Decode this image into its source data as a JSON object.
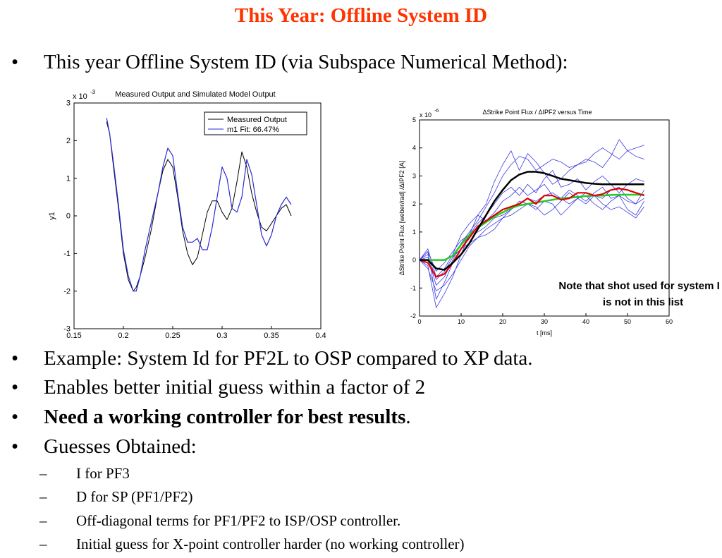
{
  "slide": {
    "title": "This Year: Offline System ID",
    "bullet_mark": "•",
    "sub_mark": "–",
    "intro": "This year Offline System ID (via Subspace Numerical Method):",
    "bullets": [
      {
        "text": "Example: System Id for PF2L to OSP compared to XP data.",
        "tail": ""
      },
      {
        "text": "Enables better initial guess within a factor of 2",
        "tail": ""
      },
      {
        "text": "Need a working controller for best results",
        "tail": "."
      },
      {
        "text": "Guesses Obtained:",
        "tail": ""
      }
    ],
    "sub_bullets": [
      "I for PF3",
      "D for SP (PF1/PF2)",
      "Off-diagonal terms for PF1/PF2 to ISP/OSP controller.",
      "Initial guess for X-point controller harder (no working controller)"
    ]
  },
  "chart_data": [
    {
      "type": "line",
      "title": "Measured Output and Simulated Model Output",
      "xlabel": "",
      "ylabel": "y1",
      "y_multiplier": "x 10",
      "y_exponent": "-3",
      "xlim": [
        0.15,
        0.4
      ],
      "ylim": [
        -3,
        3
      ],
      "xticks": [
        "0.15",
        "0.2",
        "0.25",
        "0.3",
        "0.35",
        "0.4"
      ],
      "yticks": [
        "3",
        "2",
        "1",
        "0",
        "-1",
        "-2",
        "-3"
      ],
      "grid": false,
      "legend_position": "top-right",
      "colors": {
        "measured": "#000000",
        "model": "#2a2ad6"
      },
      "series": [
        {
          "name": "Measured Output",
          "x": [
            0.183,
            0.186,
            0.19,
            0.195,
            0.2,
            0.205,
            0.21,
            0.213,
            0.217,
            0.222,
            0.228,
            0.235,
            0.24,
            0.245,
            0.25,
            0.255,
            0.26,
            0.265,
            0.27,
            0.275,
            0.28,
            0.285,
            0.29,
            0.295,
            0.3,
            0.305,
            0.31,
            0.315,
            0.32,
            0.325,
            0.33,
            0.335,
            0.34,
            0.345,
            0.35,
            0.355,
            0.36,
            0.365,
            0.37
          ],
          "values": [
            2.5,
            2.2,
            1.3,
            0.2,
            -1.0,
            -1.7,
            -2.0,
            -1.9,
            -1.6,
            -1.1,
            -0.4,
            0.6,
            1.2,
            1.5,
            1.3,
            0.5,
            -0.4,
            -1.0,
            -1.3,
            -1.1,
            -0.5,
            0.1,
            0.4,
            0.4,
            0.1,
            -0.1,
            0.2,
            0.9,
            1.7,
            1.3,
            0.6,
            0.1,
            -0.3,
            -0.4,
            -0.2,
            0.0,
            0.2,
            0.3,
            0.0
          ]
        },
        {
          "name": "m1 Fit: 66.47%",
          "x": [
            0.183,
            0.186,
            0.19,
            0.195,
            0.2,
            0.205,
            0.21,
            0.213,
            0.217,
            0.222,
            0.228,
            0.235,
            0.24,
            0.245,
            0.25,
            0.255,
            0.26,
            0.265,
            0.27,
            0.275,
            0.28,
            0.285,
            0.29,
            0.295,
            0.3,
            0.305,
            0.31,
            0.315,
            0.32,
            0.325,
            0.33,
            0.335,
            0.34,
            0.345,
            0.35,
            0.355,
            0.36,
            0.365,
            0.37
          ],
          "values": [
            2.6,
            2.2,
            1.4,
            0.3,
            -0.9,
            -1.6,
            -2.0,
            -2.0,
            -1.6,
            -0.9,
            -0.2,
            0.6,
            1.3,
            1.8,
            1.6,
            0.6,
            -0.3,
            -0.7,
            -0.7,
            -0.6,
            -0.9,
            -0.9,
            -0.3,
            0.5,
            1.3,
            1.0,
            0.2,
            0.1,
            0.5,
            1.5,
            1.1,
            0.3,
            -0.5,
            -0.8,
            -0.5,
            0.0,
            0.3,
            0.5,
            0.3
          ]
        }
      ]
    },
    {
      "type": "line",
      "title": "ΔStrike Point Flux / ΔIPF2 versus Time",
      "xlabel": "t [ms]",
      "ylabel": "ΔStrike Point Flux [weber/rad] /ΔIPF2 [A]",
      "y_multiplier": "x 10",
      "y_exponent": "-6",
      "xlim": [
        0,
        60
      ],
      "ylim": [
        -2,
        5
      ],
      "xticks": [
        "0",
        "10",
        "20",
        "30",
        "40",
        "50",
        "60"
      ],
      "yticks": [
        "5",
        "4",
        "3",
        "2",
        "1",
        "0",
        "-1",
        "-2"
      ],
      "grid": false,
      "annotation": {
        "line1": "Note that shot used for system ID",
        "line2": "is not in this list"
      },
      "colors": {
        "shots": "#3a3ae0",
        "black": "#000000",
        "red": "#e00000",
        "green": "#22cc22"
      },
      "x": [
        0,
        2,
        4,
        6,
        8,
        10,
        12,
        14,
        16,
        18,
        20,
        22,
        24,
        26,
        28,
        30,
        32,
        34,
        36,
        38,
        40,
        42,
        44,
        46,
        48,
        50,
        52,
        54
      ],
      "shots": [
        [
          0,
          0.1,
          -0.9,
          -0.6,
          0.0,
          0.6,
          1.0,
          1.4,
          1.9,
          2.4,
          3.0,
          3.4,
          3.7,
          3.6,
          3.2,
          3.4,
          3.6,
          3.5,
          3.3,
          3.4,
          3.5,
          3.8,
          4.0,
          3.8,
          3.6,
          3.9,
          4.0,
          4.1
        ],
        [
          0,
          0.3,
          -1.4,
          -0.8,
          -0.1,
          0.4,
          0.9,
          1.6,
          2.0,
          2.8,
          3.4,
          3.9,
          3.2,
          3.8,
          3.5,
          3.1,
          2.7,
          2.9,
          3.2,
          3.4,
          3.6,
          3.5,
          3.3,
          3.7,
          4.3,
          3.9,
          3.7,
          3.6
        ],
        [
          0,
          -0.2,
          -1.7,
          -1.2,
          -0.6,
          0.2,
          0.9,
          1.3,
          1.6,
          2.0,
          2.4,
          2.6,
          2.3,
          2.7,
          2.4,
          2.9,
          3.2,
          2.6,
          2.7,
          2.9,
          2.5,
          2.8,
          3.0,
          2.7,
          2.4,
          2.7,
          2.9,
          2.8
        ],
        [
          0,
          0.4,
          -0.6,
          -0.3,
          0.2,
          0.9,
          1.3,
          1.6,
          1.4,
          1.7,
          2.1,
          2.3,
          2.6,
          2.3,
          2.5,
          2.7,
          2.3,
          2.2,
          2.5,
          2.3,
          2.1,
          2.4,
          2.6,
          2.2,
          2.3,
          2.1,
          2.0,
          2.2
        ],
        [
          0,
          0.3,
          -0.4,
          -0.1,
          0.3,
          0.7,
          0.9,
          1.0,
          1.2,
          1.5,
          1.6,
          1.8,
          2.0,
          2.2,
          2.1,
          2.3,
          2.4,
          2.2,
          2.0,
          2.2,
          2.4,
          2.3,
          2.2,
          2.5,
          2.6,
          2.2,
          2.0,
          2.5
        ],
        [
          0,
          0.2,
          -0.7,
          -0.4,
          0.1,
          0.4,
          0.6,
          0.8,
          0.9,
          1.1,
          1.5,
          1.8,
          2.1,
          2.0,
          1.8,
          2.1,
          2.0,
          1.6,
          1.9,
          2.2,
          2.3,
          2.0,
          1.8,
          2.1,
          2.3,
          1.8,
          1.6,
          2.1
        ],
        [
          0,
          -0.3,
          -1.1,
          -0.9,
          -0.5,
          0.0,
          0.5,
          0.8,
          1.1,
          1.3,
          1.5,
          1.6,
          1.8,
          2.0,
          1.9,
          1.6,
          1.8,
          2.1,
          2.4,
          2.2,
          2.0,
          2.3,
          2.0,
          1.8,
          1.9,
          1.7,
          1.5,
          1.9
        ]
      ],
      "black": [
        0,
        0.0,
        -0.3,
        -0.35,
        -0.1,
        0.2,
        0.6,
        1.1,
        1.6,
        2.1,
        2.5,
        2.85,
        3.05,
        3.15,
        3.15,
        3.1,
        3.0,
        2.9,
        2.85,
        2.8,
        2.75,
        2.72,
        2.7,
        2.7,
        2.7,
        2.7,
        2.7,
        2.7
      ],
      "red": [
        0,
        -0.1,
        -0.6,
        -0.5,
        -0.1,
        0.4,
        0.8,
        1.2,
        1.4,
        1.6,
        1.8,
        1.9,
        2.0,
        2.2,
        2.0,
        2.3,
        2.3,
        2.15,
        2.2,
        2.4,
        2.4,
        2.3,
        2.35,
        2.5,
        2.55,
        2.5,
        2.4,
        2.3
      ],
      "green": [
        0,
        0.0,
        0.0,
        0.0,
        0.15,
        0.55,
        0.9,
        1.15,
        1.35,
        1.55,
        1.7,
        1.85,
        1.95,
        2.0,
        2.05,
        2.1,
        2.15,
        2.2,
        2.22,
        2.25,
        2.28,
        2.3,
        2.3,
        2.32,
        2.33,
        2.33,
        2.33,
        2.33
      ]
    }
  ]
}
